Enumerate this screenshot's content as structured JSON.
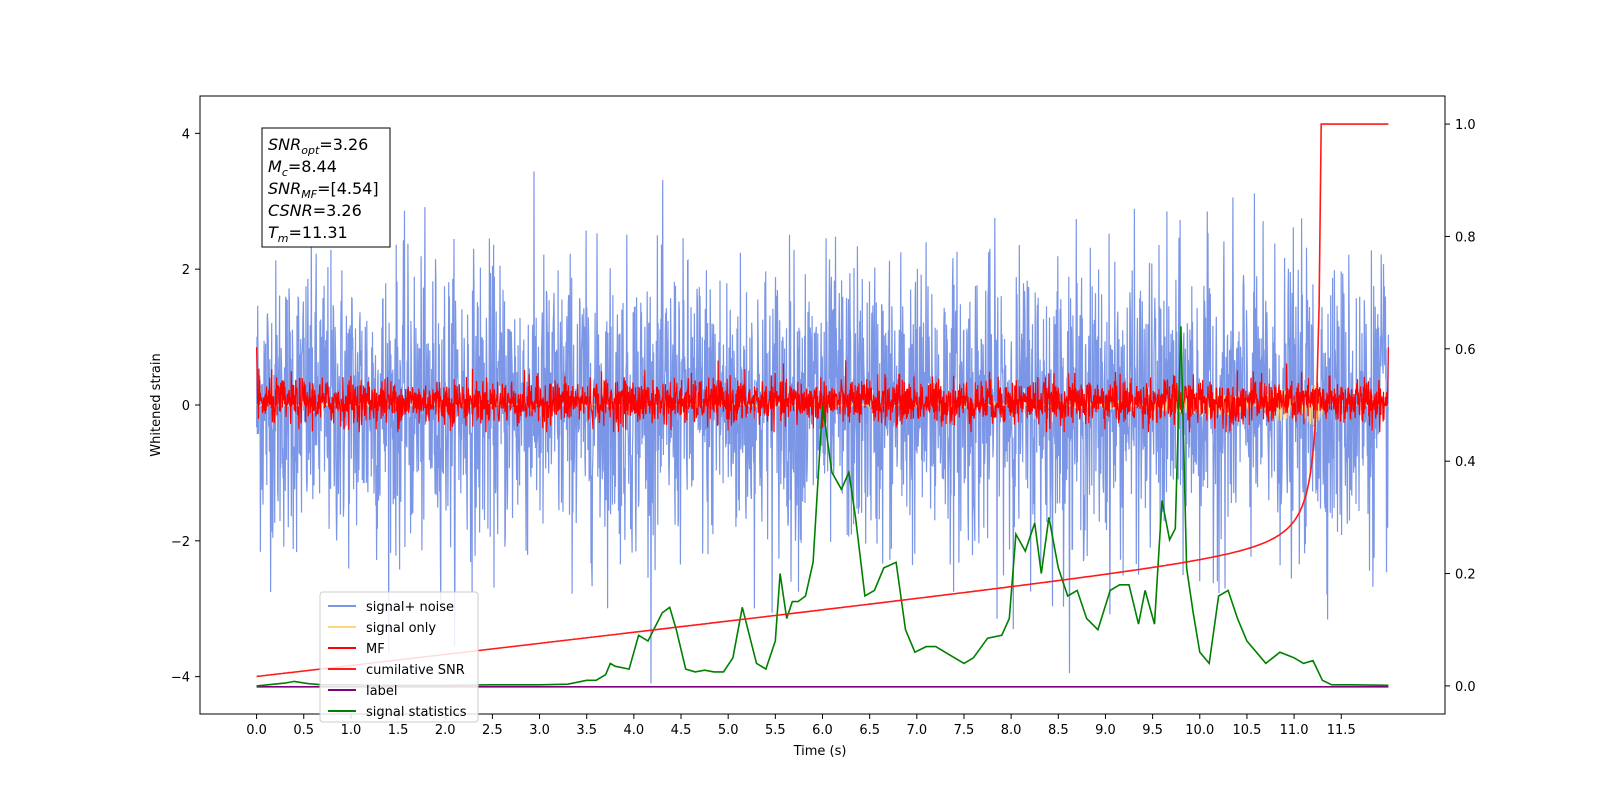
{
  "chart_data": {
    "type": "line",
    "xlabel": "Time (s)",
    "ylabel": "Whitened strain",
    "xlim": [
      -0.6,
      12.6
    ],
    "ylim": [
      -4.55,
      4.55
    ],
    "y2lim": [
      -0.05,
      1.05
    ],
    "x_ticks": [
      0.0,
      0.5,
      1.0,
      1.5,
      2.0,
      2.5,
      3.0,
      3.5,
      4.0,
      4.5,
      5.0,
      5.5,
      6.0,
      6.5,
      7.0,
      7.5,
      8.0,
      8.5,
      9.0,
      9.5,
      10.0,
      10.5,
      11.0,
      11.5
    ],
    "x_tick_labels": [
      "0.0",
      "0.5",
      "1.0",
      "1.5",
      "2.0",
      "2.5",
      "3.0",
      "3.5",
      "4.0",
      "4.5",
      "5.0",
      "5.5",
      "6.0",
      "6.5",
      "7.0",
      "7.5",
      "8.0",
      "8.5",
      "9.0",
      "9.5",
      "10.0",
      "10.5",
      "11.0",
      "11.5"
    ],
    "y_ticks": [
      4,
      2,
      0,
      -2,
      -4
    ],
    "y_tick_labels": [
      "4",
      "2",
      "0",
      "−2",
      "−4"
    ],
    "y2_ticks": [
      1.0,
      0.8,
      0.6,
      0.4,
      0.2,
      0.0
    ],
    "y2_tick_labels": [
      "1.0",
      "0.8",
      "0.6",
      "0.4",
      "0.2",
      "0.0"
    ],
    "duration": 12.0,
    "noise_sigma": 1.05,
    "mf_sigma": 0.17,
    "merger_time": 11.31,
    "label_level": -4.15,
    "signal_statistics": {
      "x": [
        0.0,
        0.3,
        0.4,
        0.55,
        0.7,
        1.0,
        1.5,
        2.0,
        2.5,
        3.0,
        3.3,
        3.5,
        3.6,
        3.7,
        3.75,
        3.8,
        3.95,
        4.05,
        4.15,
        4.3,
        4.38,
        4.45,
        4.55,
        4.65,
        4.75,
        4.85,
        4.95,
        5.05,
        5.15,
        5.3,
        5.4,
        5.5,
        5.55,
        5.62,
        5.68,
        5.74,
        5.82,
        5.9,
        6.0,
        6.1,
        6.2,
        6.28,
        6.35,
        6.45,
        6.55,
        6.65,
        6.78,
        6.88,
        6.98,
        7.1,
        7.2,
        7.4,
        7.5,
        7.6,
        7.75,
        7.9,
        7.98,
        8.05,
        8.15,
        8.25,
        8.32,
        8.4,
        8.5,
        8.6,
        8.7,
        8.8,
        8.92,
        9.05,
        9.15,
        9.25,
        9.35,
        9.42,
        9.52,
        9.6,
        9.68,
        9.74,
        9.8,
        9.86,
        9.93,
        10.0,
        10.1,
        10.2,
        10.3,
        10.4,
        10.5,
        10.6,
        10.7,
        10.85,
        11.0,
        11.1,
        11.2,
        11.3,
        11.4,
        11.6,
        12.0
      ],
      "y": [
        0.0,
        0.005,
        0.008,
        0.004,
        0.002,
        0.002,
        0.001,
        0.001,
        0.002,
        0.002,
        0.003,
        0.01,
        0.01,
        0.02,
        0.04,
        0.035,
        0.03,
        0.09,
        0.08,
        0.13,
        0.14,
        0.1,
        0.03,
        0.025,
        0.028,
        0.025,
        0.025,
        0.05,
        0.14,
        0.04,
        0.03,
        0.08,
        0.2,
        0.12,
        0.15,
        0.15,
        0.16,
        0.22,
        0.5,
        0.38,
        0.35,
        0.38,
        0.3,
        0.16,
        0.17,
        0.21,
        0.22,
        0.1,
        0.06,
        0.07,
        0.07,
        0.05,
        0.04,
        0.05,
        0.085,
        0.09,
        0.12,
        0.27,
        0.24,
        0.29,
        0.2,
        0.3,
        0.21,
        0.16,
        0.17,
        0.12,
        0.1,
        0.17,
        0.18,
        0.18,
        0.11,
        0.17,
        0.11,
        0.33,
        0.26,
        0.28,
        0.64,
        0.21,
        0.13,
        0.06,
        0.04,
        0.16,
        0.17,
        0.12,
        0.08,
        0.06,
        0.04,
        0.06,
        0.05,
        0.04,
        0.045,
        0.01,
        0.002,
        0.002,
        0.001
      ]
    },
    "series": [
      {
        "name": "signal+ noise",
        "color": "#7b96e6",
        "axis": "left"
      },
      {
        "name": "signal only",
        "color": "#ffd580",
        "axis": "left"
      },
      {
        "name": "MF",
        "color": "#ff0000",
        "axis": "left"
      },
      {
        "name": "cumilative SNR",
        "color": "#ff1a1a",
        "axis": "right"
      },
      {
        "name": "label",
        "color": "#800080",
        "axis": "left"
      },
      {
        "name": "signal statistics",
        "color": "#008000",
        "axis": "right"
      }
    ],
    "info_box": [
      {
        "main": "SNR",
        "sub": "opt",
        "value": "=3.26"
      },
      {
        "main": "M",
        "sub": "c",
        "value": "=8.44"
      },
      {
        "main": "SNR",
        "sub": "MF",
        "value": "=[4.54]"
      },
      {
        "main": "CSNR",
        "sub": "",
        "value": "=3.26"
      },
      {
        "main": "T",
        "sub": "m",
        "value": "=11.31"
      }
    ],
    "legend_position": "lower-left",
    "grid": false
  }
}
